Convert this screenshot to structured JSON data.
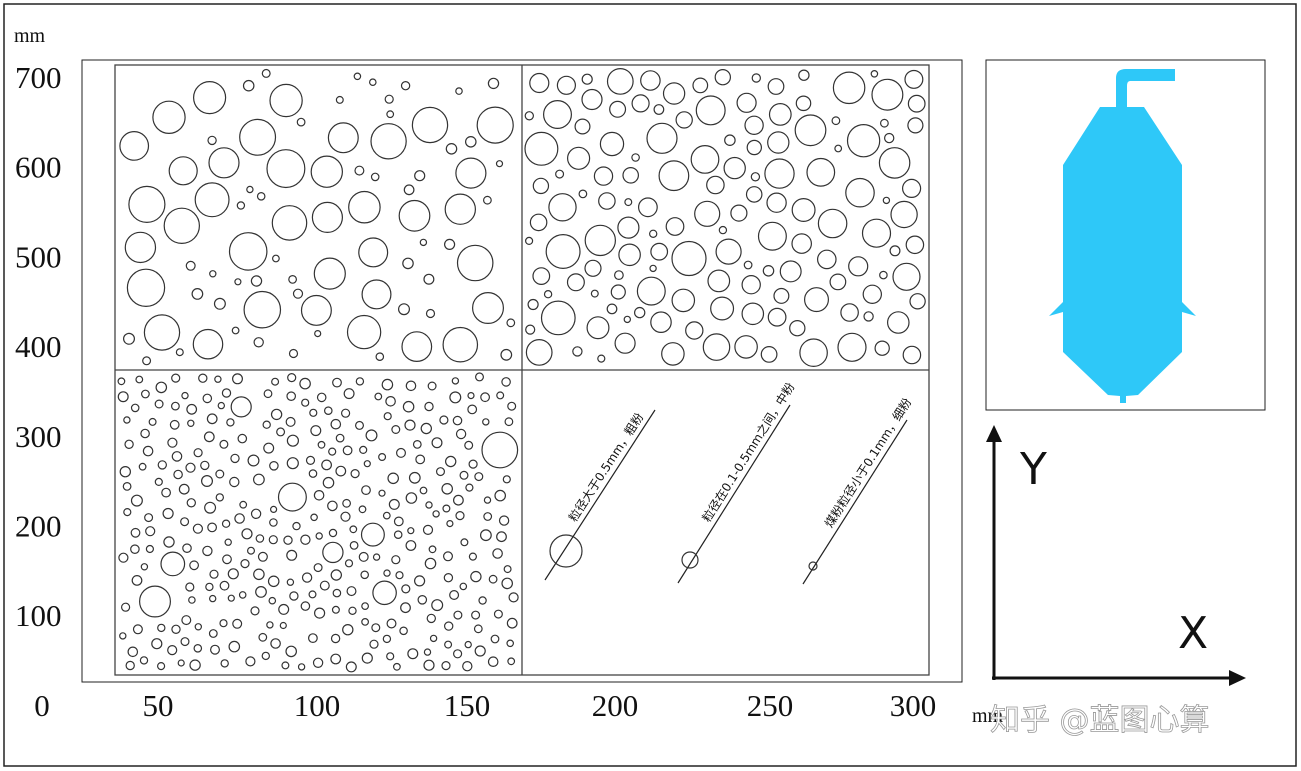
{
  "units_top": "mm",
  "units_right": "mm",
  "y_tick_labels": [
    "700",
    "600",
    "500",
    "400",
    "300",
    "200",
    "100"
  ],
  "x_tick_labels": [
    "0",
    "50",
    "100",
    "150",
    "200",
    "250",
    "300"
  ],
  "annotations": [
    "粒径大于0.5mm，粗粉",
    "粒径在0.1-0.5mm之间，中粉",
    "煤粉粒径小于0.1mm，细粉"
  ],
  "axis_labels": {
    "y": "Y",
    "x": "X"
  },
  "watermark": "知乎 @蓝图心算"
}
